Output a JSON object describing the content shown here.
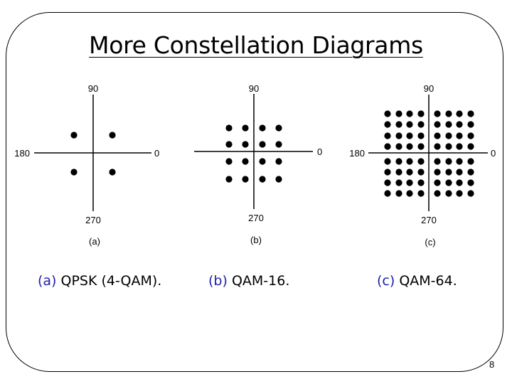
{
  "slide": {
    "title": "More Constellation Diagrams",
    "page_number": "8"
  },
  "diagrams": [
    {
      "label": "(a)",
      "axis_labels": {
        "top": "90",
        "right": "0",
        "left": "180",
        "bottom": "270"
      },
      "grid": 2,
      "caption_letter": "(a)",
      "caption_text": "QPSK (4-QAM)."
    },
    {
      "label": "(b)",
      "axis_labels": {
        "top": "90",
        "right": "0",
        "left": "",
        "bottom": "270"
      },
      "grid": 4,
      "caption_letter": "(b)",
      "caption_text": "QAM-16."
    },
    {
      "label": "(c)",
      "axis_labels": {
        "top": "90",
        "right": "0",
        "left": "180",
        "bottom": "270"
      },
      "grid": 8,
      "caption_letter": "(c)",
      "caption_text": "QAM-64."
    }
  ]
}
